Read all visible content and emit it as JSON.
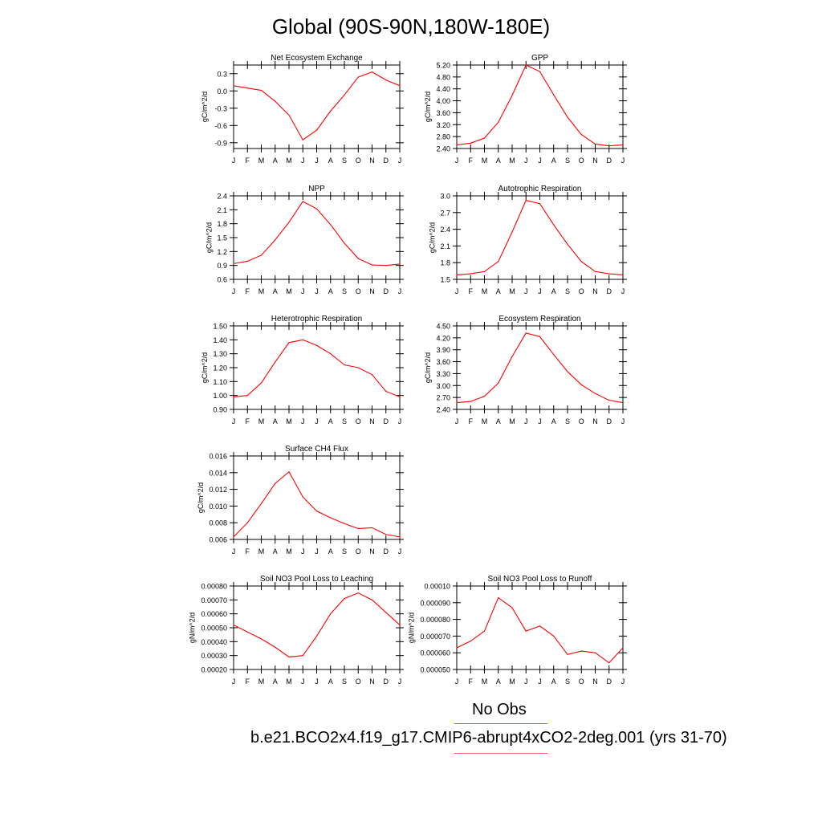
{
  "title": "Global (90S-90N,180W-180E)",
  "months": [
    "J",
    "F",
    "M",
    "A",
    "M",
    "J",
    "J",
    "A",
    "S",
    "O",
    "N",
    "D",
    "J"
  ],
  "line_color": "#ff0000",
  "legend": [
    {
      "label": "No Obs",
      "color": "#6a6aff"
    },
    {
      "label": "b.e21.BCO2x4.f19_g17.CMIP6-abrupt4xCO2-2deg.001 (yrs 31-70)",
      "color": "#ff6a6a"
    }
  ],
  "chart_data": [
    {
      "type": "line",
      "title": "Net Ecosystem Exchange",
      "ylabel": "gC/m^2/d",
      "ylim": [
        -1.0,
        0.45
      ],
      "yticks": [
        -0.9,
        -0.6,
        -0.3,
        0.0,
        0.3
      ],
      "ytick_labels": [
        "-0.9",
        "-0.6",
        "-0.3",
        "0.0",
        "0.3"
      ],
      "values": [
        0.09,
        0.05,
        0.01,
        -0.18,
        -0.42,
        -0.85,
        -0.68,
        -0.35,
        -0.07,
        0.24,
        0.33,
        0.19,
        0.09
      ]
    },
    {
      "type": "line",
      "title": "GPP",
      "ylabel": "gC/m^2/d",
      "ylim": [
        2.4,
        5.2
      ],
      "yticks": [
        2.4,
        2.8,
        3.2,
        3.6,
        4.0,
        4.4,
        4.8,
        5.2
      ],
      "ytick_labels": [
        "2.40",
        "2.80",
        "3.20",
        "3.60",
        "4.00",
        "4.40",
        "4.80",
        "5.20"
      ],
      "values": [
        2.52,
        2.58,
        2.75,
        3.28,
        4.18,
        5.2,
        4.98,
        4.2,
        3.45,
        2.87,
        2.55,
        2.49,
        2.52
      ]
    },
    {
      "type": "line",
      "title": "NPP",
      "ylabel": "gC/m^2/d",
      "ylim": [
        0.6,
        2.4
      ],
      "yticks": [
        0.6,
        0.9,
        1.2,
        1.5,
        1.8,
        2.1,
        2.4
      ],
      "ytick_labels": [
        "0.6",
        "0.9",
        "1.2",
        "1.5",
        "1.8",
        "2.1",
        "2.4"
      ],
      "values": [
        0.94,
        0.99,
        1.12,
        1.45,
        1.83,
        2.28,
        2.12,
        1.78,
        1.38,
        1.05,
        0.91,
        0.9,
        0.93
      ]
    },
    {
      "type": "line",
      "title": "Autotrophic Respiration",
      "ylabel": "gC/m^2/d",
      "ylim": [
        1.5,
        3.0
      ],
      "yticks": [
        1.5,
        1.8,
        2.1,
        2.4,
        2.7,
        3.0
      ],
      "ytick_labels": [
        "1.5",
        "1.8",
        "2.1",
        "2.4",
        "2.7",
        "3.0"
      ],
      "values": [
        1.58,
        1.6,
        1.64,
        1.82,
        2.35,
        2.92,
        2.86,
        2.48,
        2.13,
        1.82,
        1.64,
        1.6,
        1.58
      ]
    },
    {
      "type": "line",
      "title": "Heterotrophic Respiration",
      "ylabel": "gC/m^2/d",
      "ylim": [
        0.9,
        1.5
      ],
      "yticks": [
        0.9,
        1.0,
        1.1,
        1.2,
        1.3,
        1.4,
        1.5
      ],
      "ytick_labels": [
        "0.90",
        "1.00",
        "1.10",
        "1.20",
        "1.30",
        "1.40",
        "1.50"
      ],
      "values": [
        0.99,
        1.0,
        1.09,
        1.24,
        1.38,
        1.4,
        1.36,
        1.3,
        1.22,
        1.2,
        1.15,
        1.03,
        0.99
      ]
    },
    {
      "type": "line",
      "title": "Ecosystem Respiration",
      "ylabel": "gC/m^2/d",
      "ylim": [
        2.4,
        4.5
      ],
      "yticks": [
        2.4,
        2.7,
        3.0,
        3.3,
        3.6,
        3.9,
        4.2,
        4.5
      ],
      "ytick_labels": [
        "2.40",
        "2.70",
        "3.00",
        "3.30",
        "3.60",
        "3.90",
        "4.20",
        "4.50"
      ],
      "values": [
        2.57,
        2.6,
        2.73,
        3.06,
        3.73,
        4.32,
        4.23,
        3.78,
        3.35,
        3.02,
        2.8,
        2.63,
        2.57
      ]
    },
    {
      "type": "line",
      "title": "Surface CH4 Flux",
      "ylabel": "gC/m^2/d",
      "ylim": [
        0.006,
        0.016
      ],
      "yticks": [
        0.006,
        0.008,
        0.01,
        0.012,
        0.014,
        0.016
      ],
      "ytick_labels": [
        "0.006",
        "0.008",
        "0.010",
        "0.012",
        "0.014",
        "0.016"
      ],
      "values": [
        0.0063,
        0.008,
        0.0103,
        0.0127,
        0.0141,
        0.0111,
        0.0094,
        0.0086,
        0.0079,
        0.0073,
        0.0074,
        0.0066,
        0.0063
      ]
    },
    null,
    {
      "type": "line",
      "title": "Soil NO3 Pool Loss to Leaching",
      "ylabel": "gN/m^2/d",
      "ylim": [
        0.0002,
        0.0008
      ],
      "yticks": [
        0.0002,
        0.0003,
        0.0004,
        0.0005,
        0.0006,
        0.0007,
        0.0008
      ],
      "ytick_labels": [
        "0.00020",
        "0.00030",
        "0.00040",
        "0.00050",
        "0.00060",
        "0.00070",
        "0.00080"
      ],
      "values": [
        0.00052,
        0.00047,
        0.00042,
        0.00036,
        0.00029,
        0.0003,
        0.00044,
        0.0006,
        0.00071,
        0.00075,
        0.0007,
        0.00061,
        0.00052
      ]
    },
    {
      "type": "line",
      "title": "Soil NO3 Pool Loss to Runoff",
      "ylabel": "gN/m^2/d",
      "ylim": [
        5e-05,
        0.0001
      ],
      "yticks": [
        5e-05,
        6e-05,
        7e-05,
        8e-05,
        9e-05,
        0.0001
      ],
      "ytick_labels": [
        "0.000050",
        "0.000060",
        "0.000070",
        "0.000080",
        "0.000090",
        "0.00010"
      ],
      "values": [
        6.3e-05,
        6.7e-05,
        7.3e-05,
        9.3e-05,
        8.7e-05,
        7.3e-05,
        7.6e-05,
        7e-05,
        5.9e-05,
        6.1e-05,
        6e-05,
        5.4e-05,
        6.3e-05
      ]
    }
  ]
}
